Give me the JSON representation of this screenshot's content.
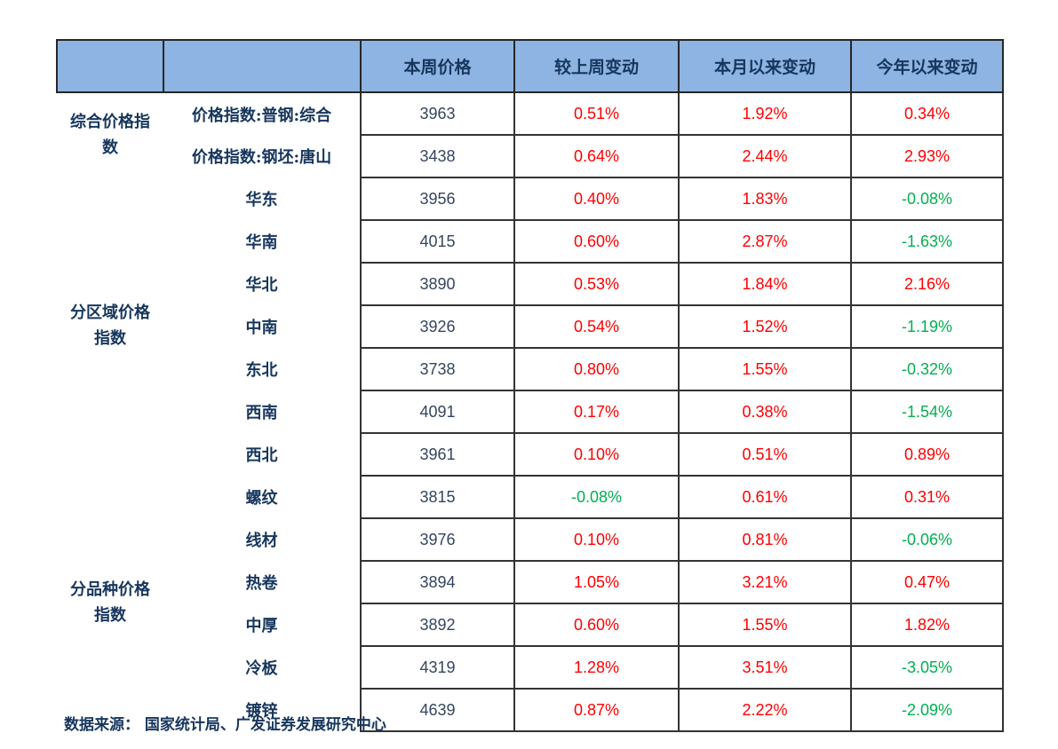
{
  "colors": {
    "header_bg": "#8DB4E2",
    "up_red": "#FE0000",
    "down_green": "#00B050",
    "label_navy": "#17365D",
    "number_slate": "#35455E"
  },
  "chart_data": {
    "type": "table",
    "column_headers": [
      "",
      "",
      "本周价格",
      "较上周变动",
      "本月以来变动",
      "今年以来变动"
    ],
    "row_groups": [
      {
        "label": "综合价格指数",
        "rows": [
          {
            "label": "价格指数:普钢:综合",
            "price": "3963",
            "wow": "0.51%",
            "mtd": "1.92%",
            "ytd": "0.34%"
          },
          {
            "label": "价格指数:钢坯:唐山",
            "price": "3438",
            "wow": "0.64%",
            "mtd": "2.44%",
            "ytd": "2.93%"
          }
        ]
      },
      {
        "label": "分区域价格指数",
        "rows": [
          {
            "label": "华东",
            "price": "3956",
            "wow": "0.40%",
            "mtd": "1.83%",
            "ytd": "-0.08%"
          },
          {
            "label": "华南",
            "price": "4015",
            "wow": "0.60%",
            "mtd": "2.87%",
            "ytd": "-1.63%"
          },
          {
            "label": "华北",
            "price": "3890",
            "wow": "0.53%",
            "mtd": "1.84%",
            "ytd": "2.16%"
          },
          {
            "label": "中南",
            "price": "3926",
            "wow": "0.54%",
            "mtd": "1.52%",
            "ytd": "-1.19%"
          },
          {
            "label": "东北",
            "price": "3738",
            "wow": "0.80%",
            "mtd": "1.55%",
            "ytd": "-0.32%"
          },
          {
            "label": "西南",
            "price": "4091",
            "wow": "0.17%",
            "mtd": "0.38%",
            "ytd": "-1.54%"
          },
          {
            "label": "西北",
            "price": "3961",
            "wow": "0.10%",
            "mtd": "0.51%",
            "ytd": "0.89%"
          }
        ]
      },
      {
        "label": "分品种价格指数",
        "rows": [
          {
            "label": "螺纹",
            "price": "3815",
            "wow": "-0.08%",
            "mtd": "0.61%",
            "ytd": "0.31%"
          },
          {
            "label": "线材",
            "price": "3976",
            "wow": "0.10%",
            "mtd": "0.81%",
            "ytd": "-0.06%"
          },
          {
            "label": "热卷",
            "price": "3894",
            "wow": "1.05%",
            "mtd": "3.21%",
            "ytd": "0.47%"
          },
          {
            "label": "中厚",
            "price": "3892",
            "wow": "0.60%",
            "mtd": "1.55%",
            "ytd": "1.82%"
          },
          {
            "label": "冷板",
            "price": "4319",
            "wow": "1.28%",
            "mtd": "3.51%",
            "ytd": "-3.05%"
          },
          {
            "label": "镀锌",
            "price": "4639",
            "wow": "0.87%",
            "mtd": "2.22%",
            "ytd": "-2.09%"
          }
        ]
      }
    ]
  },
  "footer": {
    "source": "数据来源： 国家统计局、广发证券发展研究中心"
  }
}
